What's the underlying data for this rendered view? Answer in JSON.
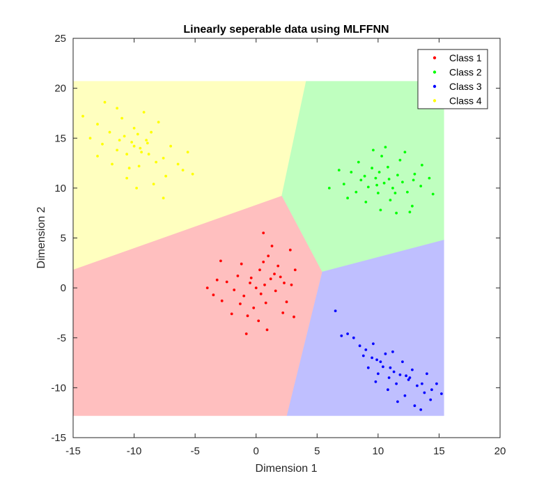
{
  "chart_data": {
    "type": "scatter",
    "title": "Linearly seperable data using MLFFNN",
    "xlabel": "Dimension 1",
    "ylabel": "Dimension 2",
    "xlim": [
      -15,
      20
    ],
    "ylim": [
      -15,
      25
    ],
    "xticks": [
      -15,
      -10,
      -5,
      0,
      5,
      10,
      15,
      20
    ],
    "yticks": [
      -15,
      -10,
      -5,
      0,
      5,
      10,
      15,
      20,
      25
    ],
    "legend_position": "top-right",
    "series": [
      {
        "name": "Class 1",
        "color": "#ff0000",
        "region_color": "#ffbfbf",
        "points": [
          [
            0.0,
            0.0
          ],
          [
            -0.5,
            0.5
          ],
          [
            0.4,
            -0.6
          ],
          [
            -1.0,
            -0.8
          ],
          [
            1.2,
            0.9
          ],
          [
            0.8,
            -1.5
          ],
          [
            -1.5,
            1.2
          ],
          [
            0.3,
            1.8
          ],
          [
            -0.2,
            -2.0
          ],
          [
            1.6,
            -0.3
          ],
          [
            -1.8,
            -0.2
          ],
          [
            2.0,
            1.1
          ],
          [
            -2.4,
            0.6
          ],
          [
            0.6,
            2.6
          ],
          [
            -0.7,
            -2.8
          ],
          [
            2.5,
            -1.4
          ],
          [
            -2.8,
            -1.3
          ],
          [
            1.0,
            3.2
          ],
          [
            1.8,
            2.2
          ],
          [
            -1.2,
            2.4
          ],
          [
            2.9,
            0.3
          ],
          [
            -3.2,
            0.8
          ],
          [
            0.2,
            -3.3
          ],
          [
            2.2,
            -2.5
          ],
          [
            -2.0,
            -2.6
          ],
          [
            3.2,
            1.8
          ],
          [
            -3.5,
            -0.7
          ],
          [
            1.3,
            4.2
          ],
          [
            0.6,
            5.5
          ],
          [
            -0.8,
            -4.6
          ],
          [
            3.1,
            -2.9
          ],
          [
            -2.9,
            2.7
          ],
          [
            2.8,
            3.8
          ],
          [
            -4.0,
            0.0
          ],
          [
            0.9,
            -4.2
          ],
          [
            1.5,
            1.4
          ],
          [
            -0.4,
            1.0
          ],
          [
            0.7,
            0.3
          ],
          [
            -1.3,
            -1.6
          ],
          [
            2.3,
            0.5
          ]
        ]
      },
      {
        "name": "Class 2",
        "color": "#00ff00",
        "region_color": "#bfffbf",
        "points": [
          [
            10.5,
            10.5
          ],
          [
            9.8,
            11.0
          ],
          [
            11.2,
            10.0
          ],
          [
            10.0,
            9.5
          ],
          [
            11.6,
            11.3
          ],
          [
            9.2,
            10.1
          ],
          [
            12.0,
            10.6
          ],
          [
            10.8,
            12.1
          ],
          [
            9.5,
            12.0
          ],
          [
            12.4,
            9.6
          ],
          [
            8.6,
            10.8
          ],
          [
            11.0,
            8.8
          ],
          [
            13.0,
            11.4
          ],
          [
            8.2,
            9.6
          ],
          [
            10.3,
            13.2
          ],
          [
            13.5,
            10.2
          ],
          [
            7.8,
            11.6
          ],
          [
            11.8,
            12.8
          ],
          [
            9.0,
            8.6
          ],
          [
            12.8,
            8.2
          ],
          [
            14.2,
            11.0
          ],
          [
            7.2,
            10.4
          ],
          [
            10.6,
            14.1
          ],
          [
            6.8,
            11.8
          ],
          [
            12.2,
            13.6
          ],
          [
            9.6,
            13.8
          ],
          [
            14.5,
            9.4
          ],
          [
            6.0,
            10.0
          ],
          [
            11.5,
            7.5
          ],
          [
            8.4,
            12.6
          ],
          [
            13.6,
            12.3
          ],
          [
            10.2,
            7.8
          ],
          [
            12.6,
            7.6
          ],
          [
            7.5,
            9.0
          ],
          [
            10.9,
            10.9
          ],
          [
            9.9,
            10.3
          ],
          [
            11.4,
            9.5
          ],
          [
            10.1,
            11.6
          ],
          [
            12.9,
            10.8
          ],
          [
            8.9,
            11.2
          ]
        ]
      },
      {
        "name": "Class 3",
        "color": "#0000ff",
        "region_color": "#bfbfff",
        "points": [
          [
            11.0,
            -8.0
          ],
          [
            10.2,
            -7.4
          ],
          [
            11.8,
            -8.7
          ],
          [
            9.5,
            -7.0
          ],
          [
            12.5,
            -9.2
          ],
          [
            10.6,
            -6.6
          ],
          [
            11.5,
            -9.6
          ],
          [
            9.0,
            -6.2
          ],
          [
            13.2,
            -9.8
          ],
          [
            10.0,
            -8.6
          ],
          [
            12.0,
            -7.4
          ],
          [
            8.5,
            -5.8
          ],
          [
            13.8,
            -10.5
          ],
          [
            9.8,
            -9.4
          ],
          [
            12.8,
            -8.2
          ],
          [
            8.0,
            -5.0
          ],
          [
            14.3,
            -11.2
          ],
          [
            10.8,
            -10.2
          ],
          [
            11.2,
            -6.4
          ],
          [
            7.5,
            -4.6
          ],
          [
            14.8,
            -9.6
          ],
          [
            9.2,
            -8.0
          ],
          [
            13.0,
            -11.8
          ],
          [
            8.8,
            -6.8
          ],
          [
            12.2,
            -10.8
          ],
          [
            6.5,
            -2.3
          ],
          [
            15.2,
            -10.6
          ],
          [
            7.0,
            -4.8
          ],
          [
            13.5,
            -12.2
          ],
          [
            9.6,
            -5.6
          ],
          [
            14.0,
            -8.6
          ],
          [
            11.6,
            -11.4
          ],
          [
            10.4,
            -7.9
          ],
          [
            11.3,
            -8.4
          ],
          [
            12.6,
            -9.0
          ],
          [
            9.9,
            -7.2
          ],
          [
            13.6,
            -9.6
          ],
          [
            10.9,
            -9.0
          ],
          [
            12.3,
            -8.8
          ],
          [
            14.4,
            -10.2
          ]
        ]
      },
      {
        "name": "Class 4",
        "color": "#ffff00",
        "region_color": "#ffffbf",
        "points": [
          [
            -9.5,
            14.0
          ],
          [
            -10.2,
            14.6
          ],
          [
            -8.8,
            13.4
          ],
          [
            -10.8,
            15.2
          ],
          [
            -9.0,
            14.8
          ],
          [
            -11.4,
            13.8
          ],
          [
            -8.2,
            12.6
          ],
          [
            -10.0,
            16.0
          ],
          [
            -12.0,
            15.6
          ],
          [
            -7.6,
            13.0
          ],
          [
            -9.6,
            12.2
          ],
          [
            -11.0,
            17.0
          ],
          [
            -8.6,
            15.6
          ],
          [
            -12.6,
            14.4
          ],
          [
            -7.0,
            14.2
          ],
          [
            -10.4,
            12.0
          ],
          [
            -13.0,
            16.4
          ],
          [
            -6.4,
            12.4
          ],
          [
            -9.2,
            17.6
          ],
          [
            -11.8,
            12.4
          ],
          [
            -7.4,
            11.2
          ],
          [
            -13.6,
            15.0
          ],
          [
            -8.0,
            16.6
          ],
          [
            -5.6,
            13.6
          ],
          [
            -10.6,
            11.0
          ],
          [
            -12.4,
            18.6
          ],
          [
            -6.0,
            11.8
          ],
          [
            -14.2,
            17.2
          ],
          [
            -9.8,
            10.0
          ],
          [
            -7.6,
            9.0
          ],
          [
            -5.2,
            11.4
          ],
          [
            -11.4,
            18.0
          ],
          [
            -13.0,
            13.2
          ],
          [
            -8.4,
            10.4
          ],
          [
            -9.4,
            13.6
          ],
          [
            -10.0,
            14.2
          ],
          [
            -8.9,
            14.5
          ],
          [
            -11.2,
            14.8
          ],
          [
            -9.7,
            15.4
          ],
          [
            -10.6,
            13.4
          ]
        ]
      }
    ]
  }
}
